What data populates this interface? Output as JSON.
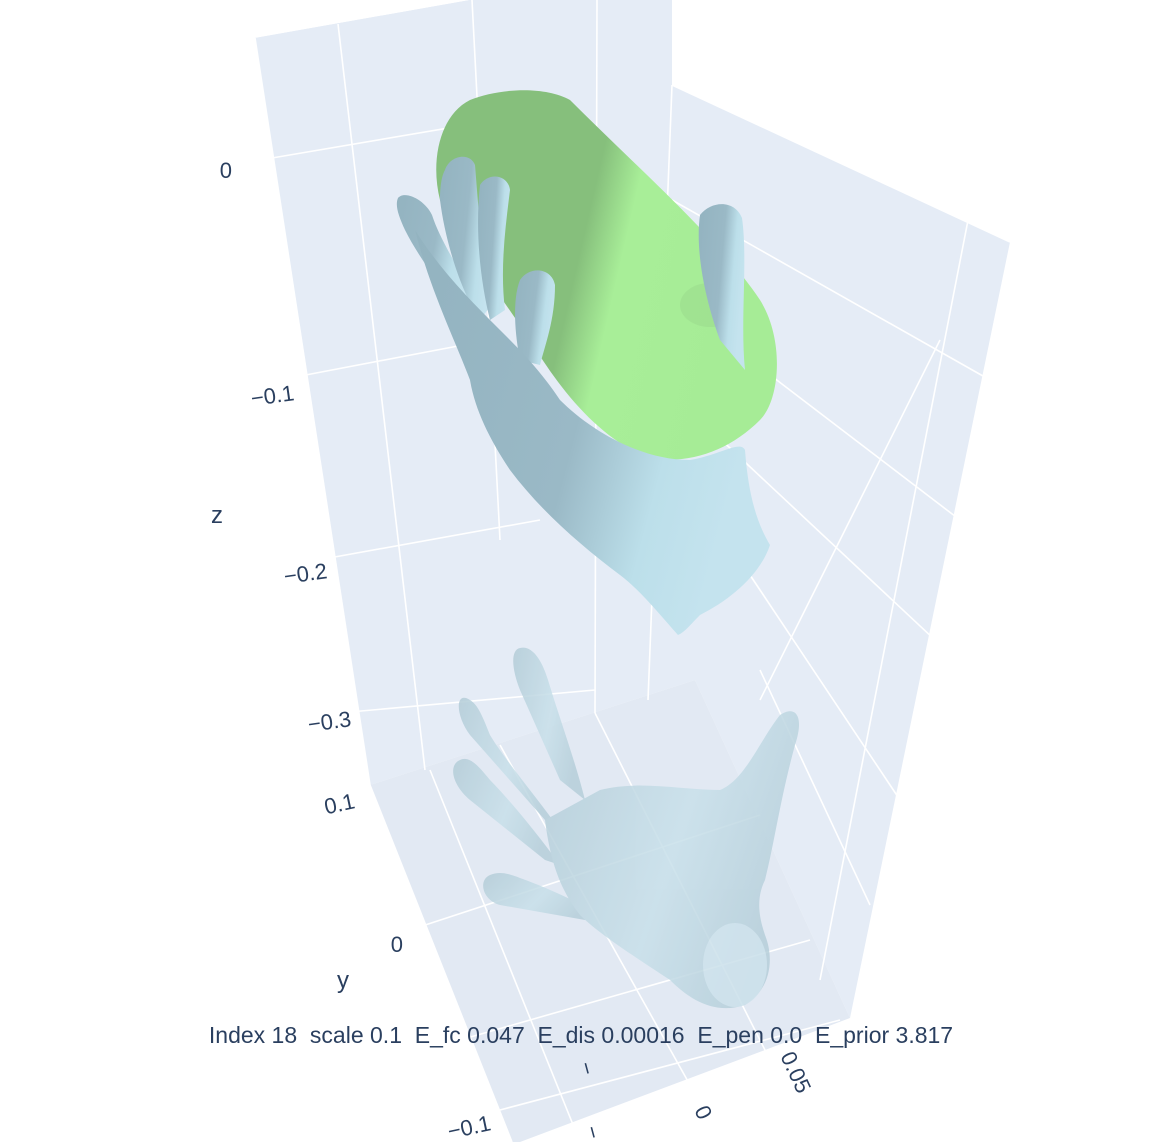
{
  "figure": {
    "caption": "Index 18  scale 0.1  E_fc 0.047  E_dis 0.00016  E_pen 0.0  E_prior 3.817",
    "colors": {
      "plane": "#e5ecf6",
      "grid": "#ffffff",
      "text": "#2a3f5f",
      "object": "#94d98a",
      "hand": "#a9cfdc",
      "hand_initial": "#c3dde8"
    },
    "axes": {
      "z": {
        "title": "z",
        "ticks": [
          "0",
          "−0.1",
          "−0.2",
          "−0.3"
        ]
      },
      "y": {
        "title": "y",
        "ticks": [
          "0.1",
          "0",
          "−0.1"
        ]
      },
      "x": {
        "title": "",
        "ticks": [
          "0.05",
          "0",
          "−"
        ]
      }
    },
    "objects": [
      {
        "name": "cylinder-object",
        "color_key": "object"
      },
      {
        "name": "optimized-hand",
        "color_key": "hand"
      },
      {
        "name": "initial-hand",
        "color_key": "hand_initial"
      }
    ]
  }
}
